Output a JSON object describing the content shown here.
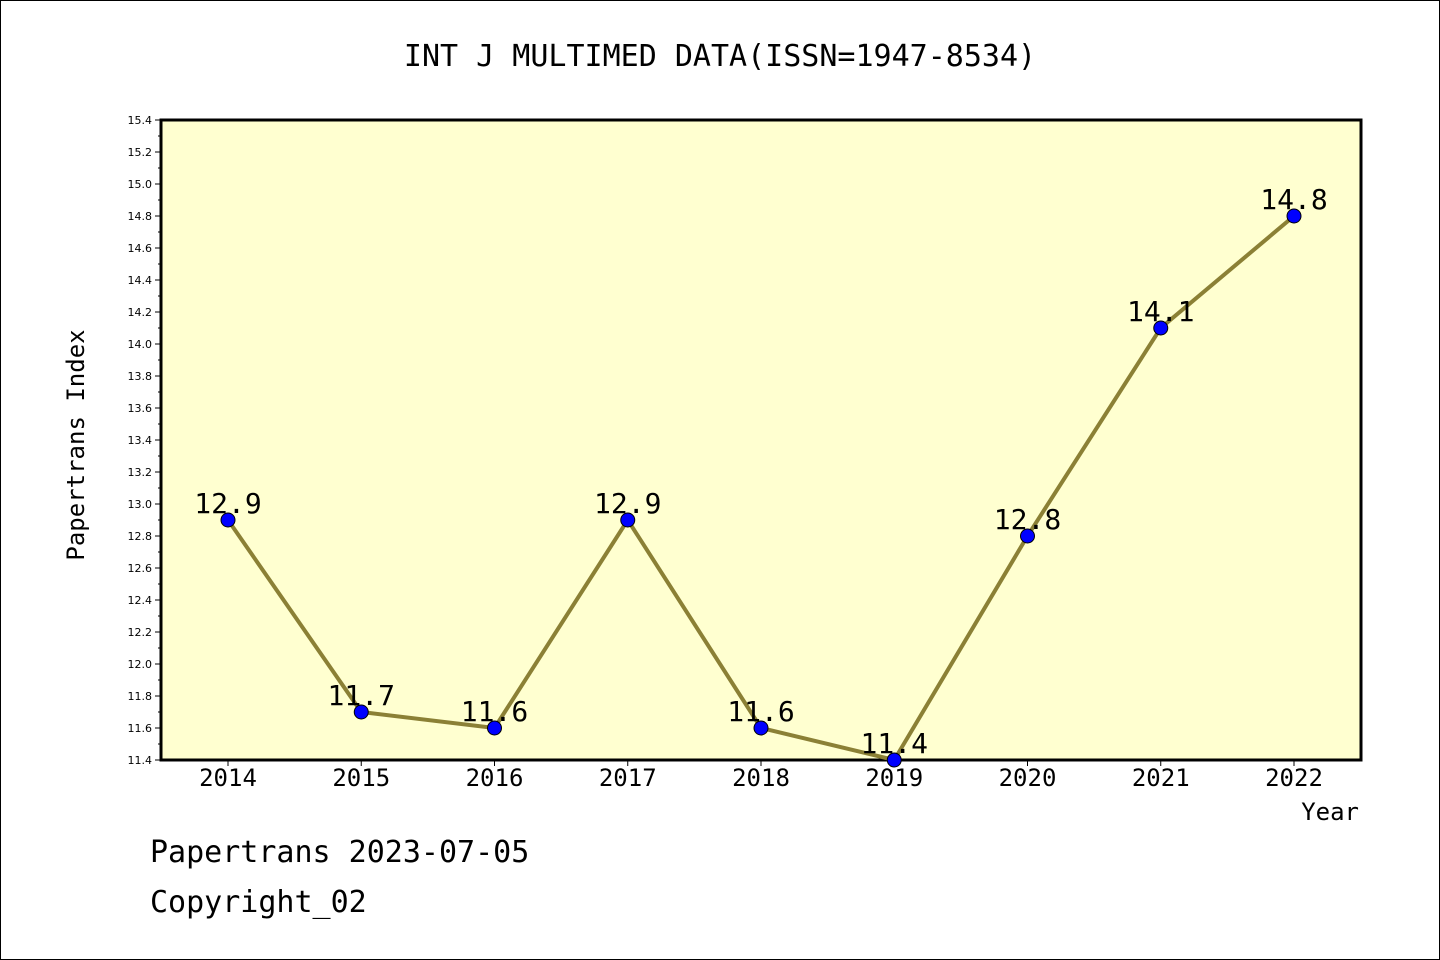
{
  "chart_data": {
    "type": "line",
    "title": "INT J MULTIMED DATA(ISSN=1947-8534)",
    "xlabel": "Year",
    "ylabel": "Papertrans Index",
    "categories": [
      "2014",
      "2015",
      "2016",
      "2017",
      "2018",
      "2019",
      "2020",
      "2021",
      "2022"
    ],
    "values": [
      12.9,
      11.7,
      11.6,
      12.9,
      11.6,
      11.4,
      12.8,
      14.1,
      14.8
    ],
    "data_labels": [
      "12.9",
      "11.7",
      "11.6",
      "12.9",
      "11.6",
      "11.4",
      "12.8",
      "14.1",
      "14.8"
    ],
    "ylim": [
      11.4,
      15.4
    ],
    "ytick_labels": [
      "11.4",
      "11.6",
      "11.8",
      "12.0",
      "12.2",
      "12.4",
      "12.6",
      "12.8",
      "13.0",
      "13.2",
      "13.4",
      "13.6",
      "13.8",
      "14.0",
      "14.2",
      "14.4",
      "14.6",
      "14.8",
      "15.0",
      "15.2",
      "15.4"
    ],
    "grid": false,
    "legend": "none",
    "colors": {
      "plot_background": "#ffffd0",
      "line": "#8b8035",
      "marker": "#0000ff"
    }
  },
  "footer": {
    "line1": "Papertrans 2023-07-05",
    "line2": "Copyright_02"
  }
}
